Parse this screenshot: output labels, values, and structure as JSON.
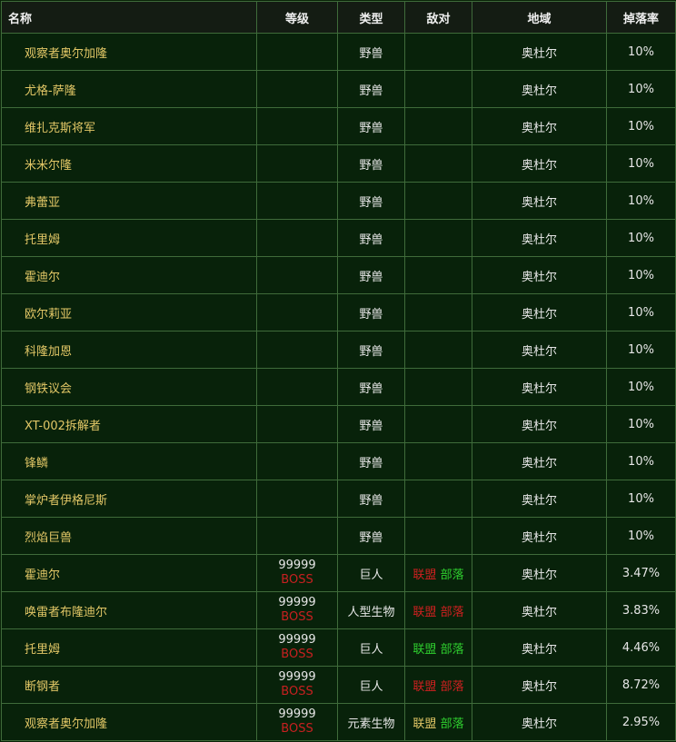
{
  "columns": [
    "名称",
    "等级",
    "类型",
    "敌对",
    "地域",
    "掉落率"
  ],
  "colors": {
    "name": "#e2c766",
    "boss": "#c82020",
    "red": "#d02020",
    "green": "#2fd02f",
    "yellow": "#e2c766",
    "background": "#08220a"
  },
  "rows": [
    {
      "name": "观察者奥尔加隆",
      "level": "",
      "tag": "",
      "type": "野兽",
      "factions": [],
      "region": "奥杜尔",
      "drop": "10%"
    },
    {
      "name": "尤格-萨隆",
      "level": "",
      "tag": "",
      "type": "野兽",
      "factions": [],
      "region": "奥杜尔",
      "drop": "10%"
    },
    {
      "name": "维扎克斯将军",
      "level": "",
      "tag": "",
      "type": "野兽",
      "factions": [],
      "region": "奥杜尔",
      "drop": "10%"
    },
    {
      "name": "米米尔隆",
      "level": "",
      "tag": "",
      "type": "野兽",
      "factions": [],
      "region": "奥杜尔",
      "drop": "10%"
    },
    {
      "name": "弗蕾亚",
      "level": "",
      "tag": "",
      "type": "野兽",
      "factions": [],
      "region": "奥杜尔",
      "drop": "10%"
    },
    {
      "name": "托里姆",
      "level": "",
      "tag": "",
      "type": "野兽",
      "factions": [],
      "region": "奥杜尔",
      "drop": "10%"
    },
    {
      "name": "霍迪尔",
      "level": "",
      "tag": "",
      "type": "野兽",
      "factions": [],
      "region": "奥杜尔",
      "drop": "10%"
    },
    {
      "name": "欧尔莉亚",
      "level": "",
      "tag": "",
      "type": "野兽",
      "factions": [],
      "region": "奥杜尔",
      "drop": "10%"
    },
    {
      "name": "科隆加恩",
      "level": "",
      "tag": "",
      "type": "野兽",
      "factions": [],
      "region": "奥杜尔",
      "drop": "10%"
    },
    {
      "name": "钢铁议会",
      "level": "",
      "tag": "",
      "type": "野兽",
      "factions": [],
      "region": "奥杜尔",
      "drop": "10%"
    },
    {
      "name": "XT-002拆解者",
      "level": "",
      "tag": "",
      "type": "野兽",
      "factions": [],
      "region": "奥杜尔",
      "drop": "10%"
    },
    {
      "name": "锋鳞",
      "level": "",
      "tag": "",
      "type": "野兽",
      "factions": [],
      "region": "奥杜尔",
      "drop": "10%"
    },
    {
      "name": "掌炉者伊格尼斯",
      "level": "",
      "tag": "",
      "type": "野兽",
      "factions": [],
      "region": "奥杜尔",
      "drop": "10%"
    },
    {
      "name": "烈焰巨兽",
      "level": "",
      "tag": "",
      "type": "野兽",
      "factions": [],
      "region": "奥杜尔",
      "drop": "10%"
    },
    {
      "name": "霍迪尔",
      "level": "99999",
      "tag": "BOSS",
      "type": "巨人",
      "factions": [
        {
          "label": "联盟",
          "color": "red"
        },
        {
          "label": "部落",
          "color": "green"
        }
      ],
      "region": "奥杜尔",
      "drop": "3.47%"
    },
    {
      "name": "唤雷者布隆迪尔",
      "level": "99999",
      "tag": "BOSS",
      "type": "人型生物",
      "factions": [
        {
          "label": "联盟",
          "color": "red"
        },
        {
          "label": "部落",
          "color": "red"
        }
      ],
      "region": "奥杜尔",
      "drop": "3.83%"
    },
    {
      "name": "托里姆",
      "level": "99999",
      "tag": "BOSS",
      "type": "巨人",
      "factions": [
        {
          "label": "联盟",
          "color": "green"
        },
        {
          "label": "部落",
          "color": "green"
        }
      ],
      "region": "奥杜尔",
      "drop": "4.46%"
    },
    {
      "name": "断钢者",
      "level": "99999",
      "tag": "BOSS",
      "type": "巨人",
      "factions": [
        {
          "label": "联盟",
          "color": "red"
        },
        {
          "label": "部落",
          "color": "red"
        }
      ],
      "region": "奥杜尔",
      "drop": "8.72%"
    },
    {
      "name": "观察者奥尔加隆",
      "level": "99999",
      "tag": "BOSS",
      "type": "元素生物",
      "factions": [
        {
          "label": "联盟",
          "color": "yellow"
        },
        {
          "label": "部落",
          "color": "green"
        }
      ],
      "region": "奥杜尔",
      "drop": "2.95%"
    }
  ]
}
